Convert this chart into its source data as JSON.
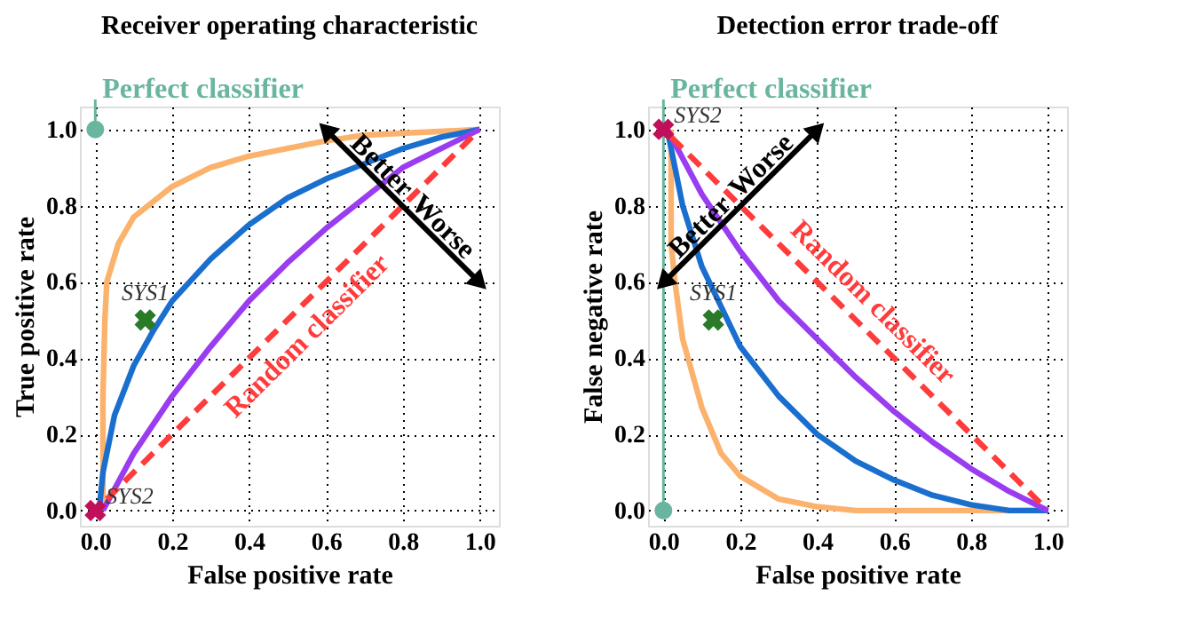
{
  "chart_data": [
    {
      "type": "line",
      "title": "Receiver operating characteristic",
      "xlabel": "False positive rate",
      "ylabel": "True positive rate",
      "xlim": [
        -0.04,
        1.05
      ],
      "ylim": [
        -0.04,
        1.06
      ],
      "xticks": [
        {
          "value": 0,
          "label": "0.0"
        },
        {
          "value": 0.2,
          "label": "0.2"
        },
        {
          "value": 0.4,
          "label": "0.4"
        },
        {
          "value": 0.6,
          "label": "0.6"
        },
        {
          "value": 0.8,
          "label": "0.8"
        },
        {
          "value": 1,
          "label": "1.0"
        }
      ],
      "yticks": [
        {
          "value": 0,
          "label": "0.0"
        },
        {
          "value": 0.2,
          "label": "0.2"
        },
        {
          "value": 0.4,
          "label": "0.4"
        },
        {
          "value": 0.6,
          "label": "0.6"
        },
        {
          "value": 0.8,
          "label": "0.8"
        },
        {
          "value": 1,
          "label": "1.0"
        }
      ],
      "grid": true,
      "series": [
        {
          "color": "#fbb26c",
          "line_style": "solid",
          "x": [
            0.02,
            0.02,
            0.025,
            0.03,
            0.06,
            0.1,
            0.2,
            0.3,
            0.4,
            0.5,
            0.6,
            0.7,
            0.8,
            1.0
          ],
          "values": [
            0.0,
            0.3,
            0.5,
            0.6,
            0.7,
            0.77,
            0.85,
            0.9,
            0.93,
            0.95,
            0.97,
            0.985,
            0.99,
            1.0
          ]
        },
        {
          "color": "#1a6fce",
          "line_style": "solid",
          "x": [
            0.01,
            0.02,
            0.05,
            0.1,
            0.15,
            0.2,
            0.3,
            0.4,
            0.5,
            0.6,
            0.7,
            0.8,
            0.9,
            1.0
          ],
          "values": [
            0.0,
            0.1,
            0.25,
            0.38,
            0.47,
            0.55,
            0.66,
            0.75,
            0.82,
            0.87,
            0.91,
            0.95,
            0.98,
            1.0
          ]
        },
        {
          "color": "#9a3cf0",
          "line_style": "solid",
          "x": [
            0.02,
            0.1,
            0.2,
            0.3,
            0.4,
            0.5,
            0.6,
            0.7,
            0.8,
            0.9,
            1.0
          ],
          "values": [
            0.0,
            0.15,
            0.3,
            0.43,
            0.55,
            0.65,
            0.74,
            0.82,
            0.9,
            0.95,
            1.0
          ]
        },
        {
          "name": "Random classifier",
          "color": "#ff3b3b",
          "line_style": "dashed",
          "x": [
            0.03,
            0.98
          ],
          "values": [
            0.03,
            0.98
          ]
        },
        {
          "name": "Perfect classifier",
          "type": "scatter",
          "marker": "circle",
          "color": "#6ab5a0",
          "x": [
            0.0
          ],
          "values": [
            1.0
          ]
        },
        {
          "name": "SYS1",
          "type": "scatter",
          "marker": "cross",
          "color": "#2a7a2a",
          "x": [
            0.13
          ],
          "values": [
            0.5
          ]
        },
        {
          "name": "SYS2",
          "type": "scatter",
          "marker": "cross",
          "color": "#c0105a",
          "x": [
            0.0
          ],
          "values": [
            0.0
          ]
        }
      ],
      "annotations": [
        "Better",
        "Worse"
      ]
    },
    {
      "type": "line",
      "title": "Detection error trade-off",
      "xlabel": "False positive rate",
      "ylabel": "False negative rate",
      "xlim": [
        -0.04,
        1.05
      ],
      "ylim": [
        -0.04,
        1.06
      ],
      "xticks": [
        {
          "value": 0,
          "label": "0.0"
        },
        {
          "value": 0.2,
          "label": "0.2"
        },
        {
          "value": 0.4,
          "label": "0.4"
        },
        {
          "value": 0.6,
          "label": "0.6"
        },
        {
          "value": 0.8,
          "label": "0.8"
        },
        {
          "value": 1,
          "label": "1.0"
        }
      ],
      "yticks": [
        {
          "value": 0,
          "label": "0.0"
        },
        {
          "value": 0.2,
          "label": "0.2"
        },
        {
          "value": 0.4,
          "label": "0.4"
        },
        {
          "value": 0.6,
          "label": "0.6"
        },
        {
          "value": 0.8,
          "label": "0.8"
        },
        {
          "value": 1,
          "label": "1.0"
        }
      ],
      "grid": true,
      "series": [
        {
          "color": "#fbb26c",
          "line_style": "solid",
          "x": [
            0.02,
            0.02,
            0.03,
            0.05,
            0.1,
            0.15,
            0.2,
            0.3,
            0.4,
            0.5,
            1.0
          ],
          "values": [
            1.0,
            0.7,
            0.6,
            0.45,
            0.27,
            0.15,
            0.09,
            0.03,
            0.01,
            0.0,
            0.0
          ]
        },
        {
          "color": "#1a6fce",
          "line_style": "solid",
          "x": [
            0.01,
            0.05,
            0.1,
            0.2,
            0.3,
            0.4,
            0.5,
            0.6,
            0.7,
            0.8,
            0.9,
            1.0
          ],
          "values": [
            1.0,
            0.8,
            0.64,
            0.43,
            0.3,
            0.2,
            0.13,
            0.08,
            0.04,
            0.015,
            0.0,
            0.0
          ]
        },
        {
          "color": "#9a3cf0",
          "line_style": "solid",
          "x": [
            0.01,
            0.1,
            0.2,
            0.3,
            0.4,
            0.5,
            0.6,
            0.7,
            0.8,
            0.9,
            1.0
          ],
          "values": [
            1.0,
            0.83,
            0.68,
            0.55,
            0.45,
            0.35,
            0.26,
            0.18,
            0.11,
            0.05,
            0.0
          ]
        },
        {
          "name": "Random classifier",
          "color": "#ff3b3b",
          "line_style": "dashed",
          "x": [
            0.02,
            0.98
          ],
          "values": [
            0.98,
            0.02
          ]
        },
        {
          "name": "Perfect classifier",
          "type": "scatter",
          "marker": "circle",
          "color": "#6ab5a0",
          "x": [
            0.0
          ],
          "values": [
            0.0
          ]
        },
        {
          "name": "SYS1",
          "type": "scatter",
          "marker": "cross",
          "color": "#2a7a2a",
          "x": [
            0.13
          ],
          "values": [
            0.5
          ]
        },
        {
          "name": "SYS2",
          "type": "scatter",
          "marker": "cross",
          "color": "#c0105a",
          "x": [
            0.0
          ],
          "values": [
            1.0
          ]
        }
      ],
      "annotations": [
        "Better",
        "Worse"
      ]
    }
  ]
}
